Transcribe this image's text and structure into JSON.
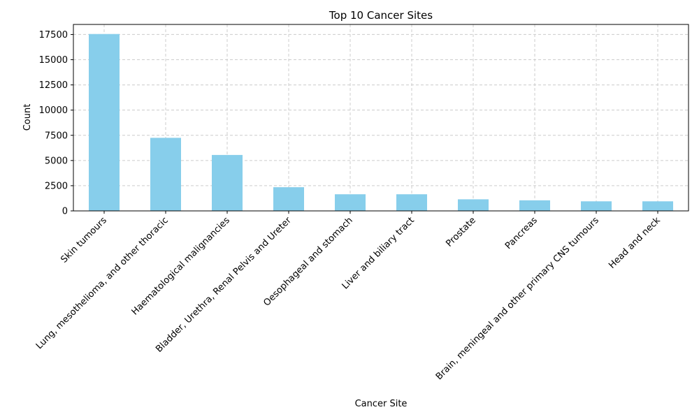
{
  "chart_data": {
    "type": "bar",
    "title": "Top 10 Cancer Sites",
    "xlabel": "Cancer Site",
    "ylabel": "Count",
    "categories": [
      "Skin tumours",
      "Lung, mesothelioma, and other thoracic",
      "Haematological malignancies",
      "Bladder, Urethra, Renal Pelvis and Ureter",
      "Oesophageal and stomach",
      "Liver and biliary tract",
      "Prostate",
      "Pancreas",
      "Brain, meningeal and other primary CNS tumours",
      "Head and neck"
    ],
    "values": [
      17550,
      7250,
      5550,
      2350,
      1650,
      1650,
      1150,
      1050,
      950,
      950
    ],
    "ylim": [
      0,
      18500
    ],
    "yticks": [
      0,
      2500,
      5000,
      7500,
      10000,
      12500,
      15000,
      17500
    ],
    "ytick_labels": [
      "0",
      "2500",
      "5000",
      "7500",
      "10000",
      "12500",
      "15000",
      "17500"
    ],
    "grid": true,
    "bar_color": "#87ceeb",
    "grid_color": "#cccccc"
  }
}
